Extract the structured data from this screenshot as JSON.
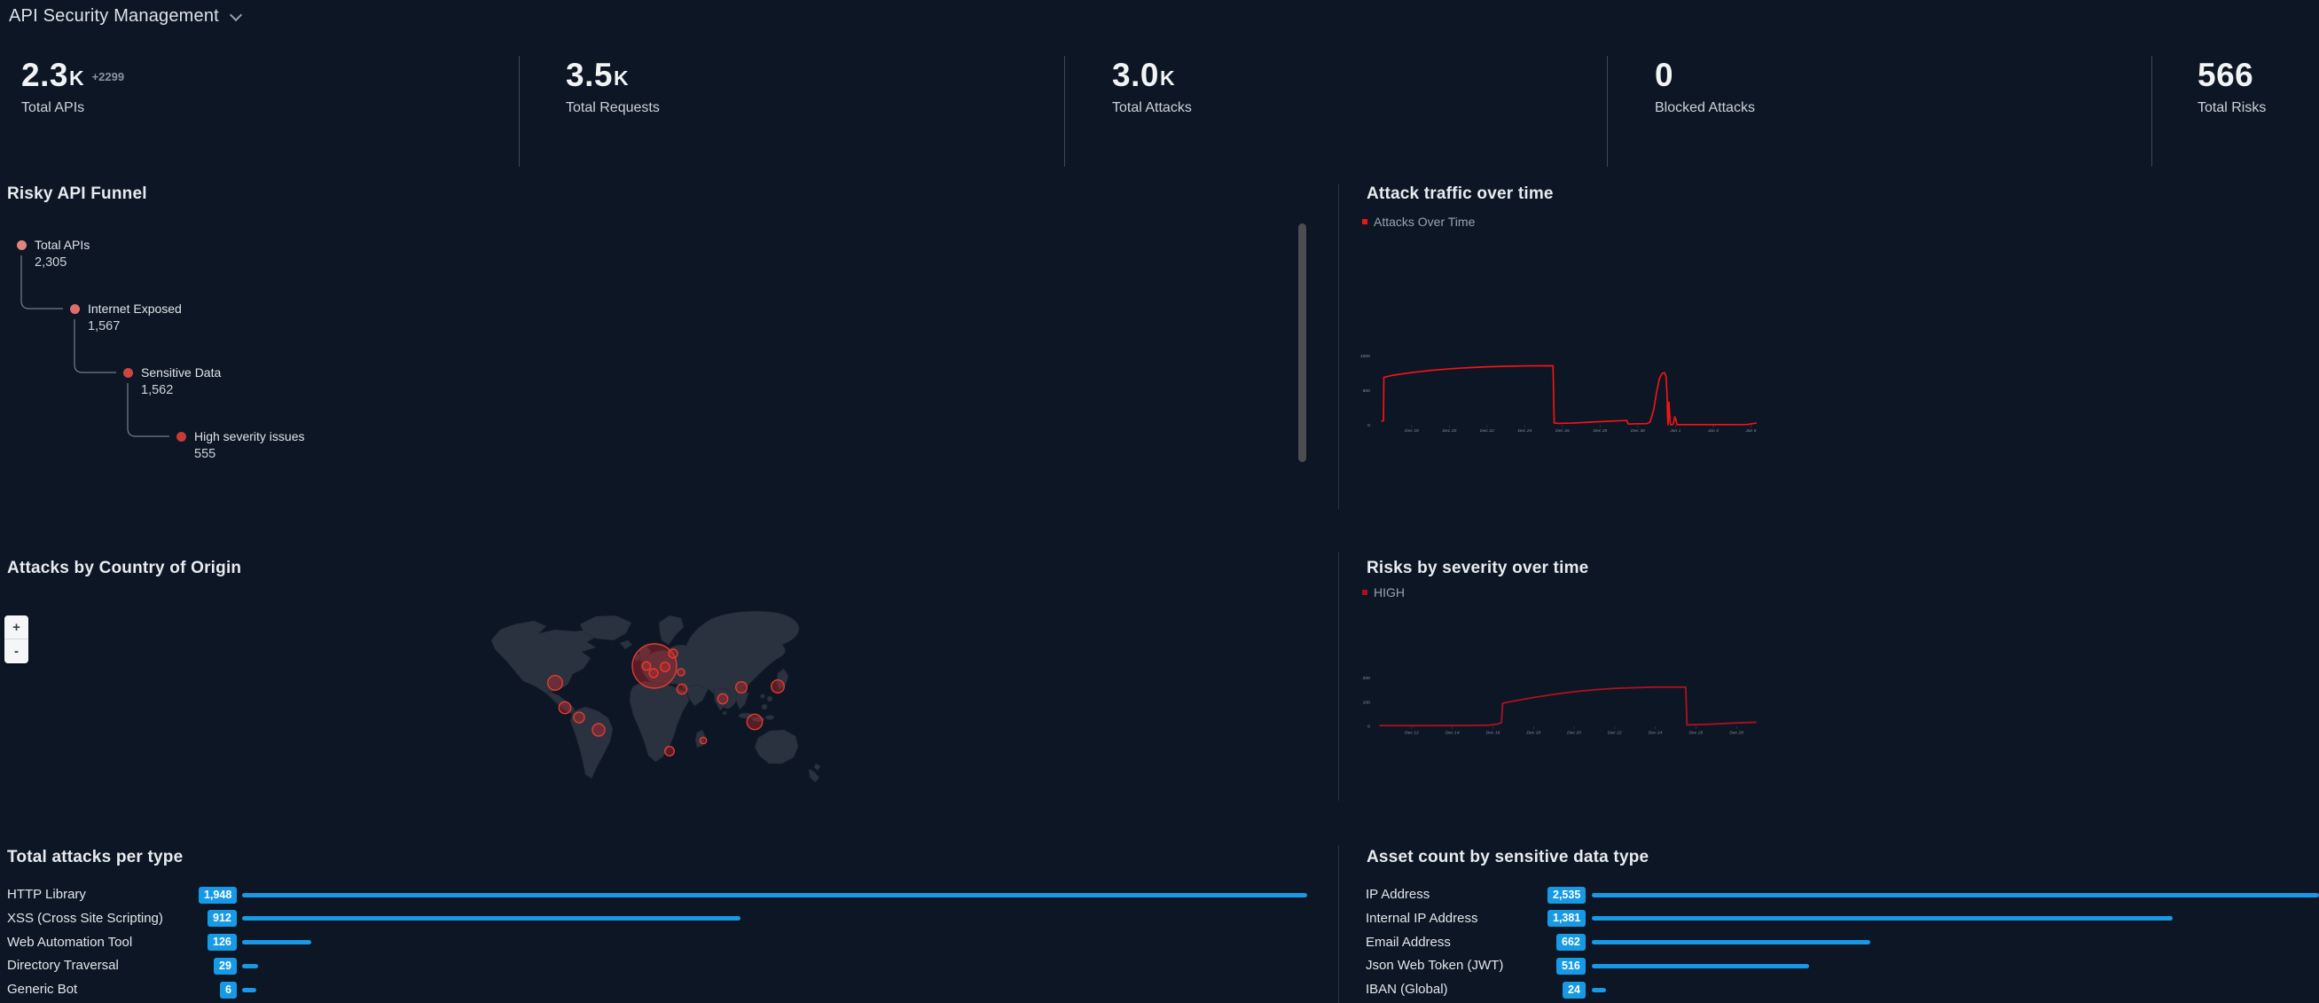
{
  "header": {
    "title": "API Security Management"
  },
  "kpis": [
    {
      "value": "2.3",
      "suffix": "K",
      "delta": "+2299",
      "label": "Total APIs"
    },
    {
      "value": "3.5",
      "suffix": "K",
      "delta": "",
      "label": "Total Requests"
    },
    {
      "value": "3.0",
      "suffix": "K",
      "delta": "",
      "label": "Total Attacks"
    },
    {
      "value": "0",
      "suffix": "",
      "delta": "",
      "label": "Blocked Attacks"
    },
    {
      "value": "566",
      "suffix": "",
      "delta": "",
      "label": "Total Risks"
    }
  ],
  "funnel": {
    "title": "Risky API Funnel",
    "steps": [
      {
        "label": "Total APIs",
        "value": "2,305",
        "dot_color": "#e2837d"
      },
      {
        "label": "Internet Exposed",
        "value": "1,567",
        "dot_color": "#de6e67"
      },
      {
        "label": "Sensitive Data",
        "value": "1,562",
        "dot_color": "#cd453f"
      },
      {
        "label": "High severity issues",
        "value": "555",
        "dot_color": "#c73b36"
      }
    ]
  },
  "map_panel": {
    "title": "Attacks by Country of Origin",
    "zoom_in_label": "+",
    "zoom_out_label": "-",
    "bubble_fill": "rgba(220,40,40,0.36)",
    "bubble_stroke": "#e23c30",
    "bubbles": [
      [
        76,
        90,
        8.3
      ],
      [
        87,
        118,
        6.7
      ],
      [
        103,
        129,
        6
      ],
      [
        125,
        143,
        7
      ],
      [
        188,
        71,
        25
      ],
      [
        179,
        71,
        4.7
      ],
      [
        187,
        79,
        5
      ],
      [
        200,
        72,
        5.3
      ],
      [
        209,
        57,
        5
      ],
      [
        218,
        78,
        4
      ],
      [
        219,
        97,
        5.7
      ],
      [
        205,
        167,
        5.3
      ],
      [
        243,
        155,
        3.7
      ],
      [
        265,
        108,
        5.7
      ],
      [
        286,
        95,
        6.3
      ],
      [
        327,
        94,
        7.3
      ],
      [
        301,
        134,
        8.7
      ]
    ]
  },
  "chart_data": [
    {
      "type": "line",
      "title": "Attack traffic over time",
      "legend": "Attacks Over Time",
      "color": "#f51414",
      "xlabel": "",
      "ylabel": "",
      "ylim": [
        0,
        1070
      ],
      "x_ticks": [
        [
          "Dec 18",
          2
        ],
        [
          "Dec 20",
          4
        ],
        [
          "Dec 22",
          6
        ],
        [
          "Dec 24",
          8
        ],
        [
          "Dec 26",
          10
        ],
        [
          "Dec 28",
          12
        ],
        [
          "Dec 30",
          14
        ],
        [
          "Jan 1",
          16
        ],
        [
          "Jan 3",
          18
        ],
        [
          "Jan 5",
          20
        ]
      ],
      "y_ticks": [
        [
          "0",
          0
        ],
        [
          "500",
          500
        ],
        [
          "1000",
          1000
        ]
      ],
      "series": [
        [
          0.42,
          55
        ],
        [
          0.5,
          60
        ],
        [
          0.52,
          690
        ],
        [
          1,
          722
        ],
        [
          2,
          762
        ],
        [
          3,
          792
        ],
        [
          4,
          815
        ],
        [
          5,
          832
        ],
        [
          6,
          845
        ],
        [
          7,
          853
        ],
        [
          8,
          858
        ],
        [
          9,
          859
        ],
        [
          9.5,
          859
        ],
        [
          9.56,
          28
        ],
        [
          9.8,
          21
        ],
        [
          10.5,
          26
        ],
        [
          11.5,
          40
        ],
        [
          12.5,
          54
        ],
        [
          13.2,
          62
        ],
        [
          13.42,
          63
        ],
        [
          13.48,
          14
        ],
        [
          14.1,
          16
        ],
        [
          14.48,
          18
        ],
        [
          14.65,
          40
        ],
        [
          14.85,
          230
        ],
        [
          15,
          480
        ],
        [
          15.15,
          680
        ],
        [
          15.3,
          752
        ],
        [
          15.42,
          758
        ],
        [
          15.5,
          700
        ],
        [
          15.55,
          450
        ],
        [
          15.58,
          120
        ],
        [
          15.6,
          4
        ],
        [
          15.62,
          60
        ],
        [
          15.65,
          332
        ],
        [
          15.7,
          120
        ],
        [
          15.73,
          4
        ],
        [
          15.85,
          4
        ],
        [
          15.9,
          30
        ],
        [
          15.96,
          118
        ],
        [
          16.02,
          80
        ],
        [
          16.08,
          4
        ],
        [
          17,
          4
        ],
        [
          18,
          4
        ],
        [
          19,
          4
        ],
        [
          19.8,
          5
        ],
        [
          20,
          14
        ],
        [
          20.28,
          26
        ]
      ]
    },
    {
      "type": "line",
      "title": "Risks by severity over time",
      "legend": "HIGH",
      "color": "#a8121f",
      "xlabel": "",
      "ylabel": "",
      "ylim": [
        0,
        260
      ],
      "x_ticks": [
        [
          "Dec 12",
          1
        ],
        [
          "Dec 14",
          3
        ],
        [
          "Dec 16",
          5
        ],
        [
          "Dec 18",
          7
        ],
        [
          "Dec 20",
          9
        ],
        [
          "Dec 22",
          11
        ],
        [
          "Dec 24",
          13
        ],
        [
          "Dec 26",
          15
        ],
        [
          "Dec 28",
          17
        ]
      ],
      "y_ticks": [
        [
          "0",
          0
        ],
        [
          "100",
          100
        ],
        [
          "200",
          200
        ]
      ],
      "series": [
        [
          -0.56,
          2
        ],
        [
          2,
          2
        ],
        [
          4,
          2.5
        ],
        [
          4.8,
          4
        ],
        [
          5.2,
          8
        ],
        [
          5.42,
          14
        ],
        [
          5.48,
          95
        ],
        [
          6,
          104
        ],
        [
          7,
          119
        ],
        [
          8,
          132
        ],
        [
          9,
          143
        ],
        [
          10,
          151
        ],
        [
          11,
          157
        ],
        [
          12,
          160
        ],
        [
          13,
          162
        ],
        [
          14,
          162
        ],
        [
          14.5,
          162
        ],
        [
          14.56,
          5
        ],
        [
          15,
          6
        ],
        [
          16,
          9
        ],
        [
          17,
          13
        ],
        [
          17.95,
          16
        ]
      ]
    }
  ],
  "attack_types": {
    "title": "Total attacks per type",
    "bar_color": "#1799e6",
    "rows": [
      [
        "HTTP Library",
        1948,
        "1,948"
      ],
      [
        "XSS (Cross Site Scripting)",
        912,
        "912"
      ],
      [
        "Web Automation Tool",
        126,
        "126"
      ],
      [
        "Directory Traversal",
        29,
        "29"
      ],
      [
        "Generic Bot",
        6,
        "6"
      ]
    ]
  },
  "asset_counts": {
    "title": "Asset count by sensitive data type",
    "bar_color": "#1799e6",
    "rows": [
      [
        "IP Address",
        2535,
        "2,535"
      ],
      [
        "Internal IP Address",
        1381,
        "1,381"
      ],
      [
        "Email Address",
        662,
        "662"
      ],
      [
        "Json Web Token (JWT)",
        516,
        "516"
      ],
      [
        "IBAN (Global)",
        24,
        "24"
      ]
    ]
  }
}
